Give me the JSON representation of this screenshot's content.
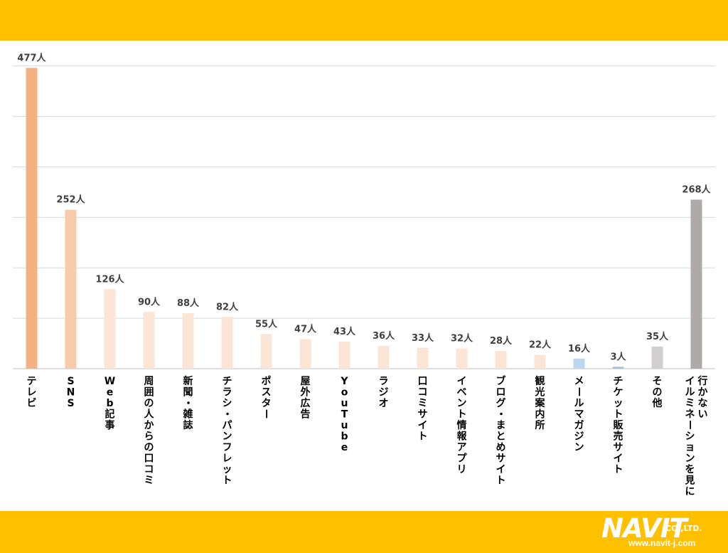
{
  "brand": {
    "logo": "NAVIT",
    "company": "CO.,LTD.",
    "url": "www.navit-j.com"
  },
  "colors": {
    "band": "#FFC000"
  },
  "chart_data": {
    "type": "bar",
    "ylim": [
      0,
      500
    ],
    "grid": true,
    "categories": [
      "テレビ",
      "SNS",
      "Web記事",
      "周囲の人からの口コミ",
      "新聞・雑誌",
      "チラシ・パンフレット",
      "ポスター",
      "屋外広告",
      "YouTube",
      "ラジオ",
      "口コミサイト",
      "イベント情報アプリ",
      "ブログ・まとめサイト",
      "観光案内所",
      "メールマガジン",
      "チケット販売サイト",
      "その他",
      "イルミネーションを見に行かない"
    ],
    "values": [
      477,
      252,
      126,
      90,
      88,
      82,
      55,
      47,
      43,
      36,
      33,
      32,
      28,
      22,
      16,
      3,
      35,
      268
    ],
    "data_labels": [
      "477人",
      "252人",
      "126人",
      "90人",
      "88人",
      "82人",
      "55人",
      "47人",
      "43人",
      "36人",
      "33人",
      "32人",
      "28人",
      "22人",
      "16人",
      "3人",
      "35人",
      "268人"
    ],
    "bar_colors": [
      "#F4B183",
      "#F8CBAD",
      "#FBE5D6",
      "#FBE5D6",
      "#FBE5D6",
      "#FBE5D6",
      "#FBE5D6",
      "#FBE5D6",
      "#FBE5D6",
      "#FBE5D6",
      "#FBE5D6",
      "#FBE5D6",
      "#FBE5D6",
      "#FBE5D6",
      "#BDD7EE",
      "#9DC3E6",
      "#D0CECE",
      "#AEAAAA"
    ]
  }
}
